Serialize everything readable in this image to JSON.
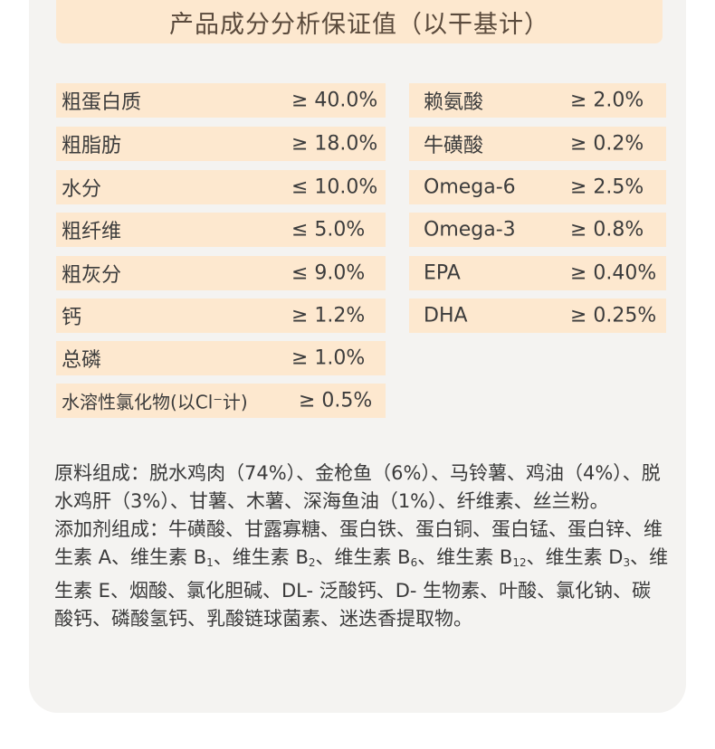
{
  "title": "产品成分分析保证值（以干基计）",
  "left_rows": [
    {
      "label": "粗蛋白质",
      "value": "≥ 40.0%"
    },
    {
      "label": "粗脂肪",
      "value": "≥ 18.0%"
    },
    {
      "label": "水分",
      "value": "≤ 10.0%"
    },
    {
      "label": "粗纤维",
      "value": "≤ 5.0%"
    },
    {
      "label": "粗灰分",
      "value": "≤ 9.0%"
    },
    {
      "label": "钙",
      "value": "≥ 1.2%"
    },
    {
      "label": "总磷",
      "value": "≥ 1.0%"
    },
    {
      "label": "水溶性氯化物(以Cl⁻计)",
      "value": "≥ 0.5%"
    }
  ],
  "right_rows": [
    {
      "label": "赖氨酸",
      "value": "≥ 2.0%"
    },
    {
      "label": "牛磺酸",
      "value": "≥ 0.2%"
    },
    {
      "label": "Omega-6",
      "value": "≥ 2.5%"
    },
    {
      "label": "Omega-3",
      "value": "≥ 0.8%"
    },
    {
      "label": "EPA",
      "value": "≥ 0.40%"
    },
    {
      "label": "DHA",
      "value": "≥ 0.25%"
    }
  ],
  "ingredients": "原料组成：脱水鸡肉（74%）、金枪鱼（6%）、马铃薯、鸡油（4%）、脱水鸡肝（3%）、甘薯、木薯、深海鱼油（1%）、纤维素、丝兰粉。",
  "additives": {
    "part1": "添加剂组成：牛磺酸、甘露寡糖、蛋白铁、蛋白铜、蛋白锰、蛋白锌、维生素 A、维生素 B",
    "sub1": "1",
    "part2": "、维生素 B",
    "sub2": "2",
    "part3": "、维生素 B",
    "sub3": "6",
    "part4": "、维生素 B",
    "sub4": "12",
    "part5": "、维生素 D",
    "sub5": "3",
    "part6": "、维生素 E、烟酸、氯化胆碱、DL- 泛酸钙、D- 生物素、叶酸、氯化钠、碳酸钙、磷酸氢钙、乳酸链球菌素、迷迭香提取物。"
  },
  "colors": {
    "row_bg": "#fde8cf",
    "card_bg": "#f4f3f1"
  }
}
